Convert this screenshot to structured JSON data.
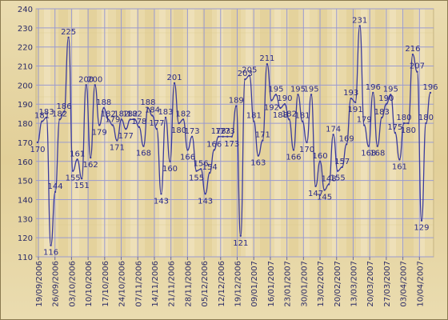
{
  "chart_data": {
    "type": "line",
    "title": "",
    "xlabel": "",
    "ylabel": "",
    "ylim": [
      110,
      240
    ],
    "y_ticks": [
      110,
      120,
      130,
      140,
      150,
      160,
      170,
      180,
      190,
      200,
      210,
      220,
      230,
      240
    ],
    "grid": true,
    "x_tick_labels": [
      "19/09/2006",
      "26/09/2006",
      "03/10/2006",
      "10/10/2006",
      "17/10/2006",
      "24/10/2006",
      "07/11/2006",
      "14/11/2006",
      "21/11/2006",
      "28/11/2006",
      "05/12/2006",
      "12/12/2006",
      "19/12/2006",
      "09/01/2007",
      "16/01/2007",
      "23/01/2007",
      "30/01/2007",
      "13/02/2007",
      "20/02/2007",
      "13/03/2007",
      "20/03/2007",
      "27/03/2007",
      "03/04/2007",
      "10/04/2007"
    ],
    "colors": {
      "line": "#3b3b9c",
      "labels": "#2a2a88",
      "grid": "#9a9ad0"
    },
    "series": [
      {
        "values": [
          170,
          181,
          183,
          116,
          144,
          182,
          186,
          225,
          155,
          161,
          151,
          200,
          162,
          200,
          179,
          188,
          182,
          179,
          171,
          182,
          177,
          182,
          182,
          178,
          168,
          188,
          184,
          177,
          143,
          183,
          160,
          201,
          180,
          182,
          166,
          173,
          155,
          156,
          143,
          154,
          166,
          173,
          173,
          173,
          173,
          189,
          121,
          203,
          205,
          181,
          163,
          171,
          211,
          192,
          195,
          188,
          190,
          182,
          166,
          195,
          181,
          170,
          195,
          147,
          160,
          145,
          148,
          174,
          155,
          157,
          169,
          193,
          191,
          231,
          179,
          168,
          196,
          168,
          183,
          190,
          195,
          175,
          161,
          180,
          180,
          216,
          207,
          129,
          180,
          196
        ]
      }
    ]
  }
}
